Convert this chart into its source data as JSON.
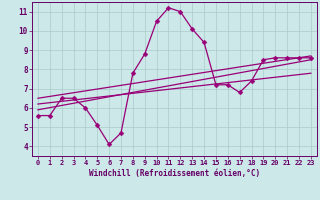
{
  "xlabel": "Windchill (Refroidissement éolien,°C)",
  "bg_color": "#cce8e8",
  "grid_color": "#aacccc",
  "line_color": "#990077",
  "text_color": "#660066",
  "xlim": [
    -0.5,
    23.5
  ],
  "ylim": [
    3.5,
    11.5
  ],
  "xticks": [
    0,
    1,
    2,
    3,
    4,
    5,
    6,
    7,
    8,
    9,
    10,
    11,
    12,
    13,
    14,
    15,
    16,
    17,
    18,
    19,
    20,
    21,
    22,
    23
  ],
  "yticks": [
    4,
    5,
    6,
    7,
    8,
    9,
    10,
    11
  ],
  "curve1_x": [
    0,
    1,
    2,
    3,
    4,
    5,
    6,
    7,
    8,
    9,
    10,
    11,
    12,
    13,
    14,
    15,
    16,
    17,
    18,
    19,
    20,
    21,
    22,
    23
  ],
  "curve1_y": [
    5.6,
    5.6,
    6.5,
    6.5,
    6.0,
    5.1,
    4.1,
    4.7,
    7.8,
    8.8,
    10.5,
    11.2,
    11.0,
    10.1,
    9.4,
    7.2,
    7.2,
    6.8,
    7.4,
    8.5,
    8.6,
    8.6,
    8.6,
    8.6
  ],
  "curve2_x": [
    0,
    23
  ],
  "curve2_y": [
    5.9,
    8.5
  ],
  "curve3_x": [
    0,
    23
  ],
  "curve3_y": [
    6.2,
    7.8
  ],
  "curve4_x": [
    0,
    23
  ],
  "curve4_y": [
    6.5,
    8.7
  ],
  "marker": "D",
  "markersize": 2.5,
  "linewidth": 0.9
}
